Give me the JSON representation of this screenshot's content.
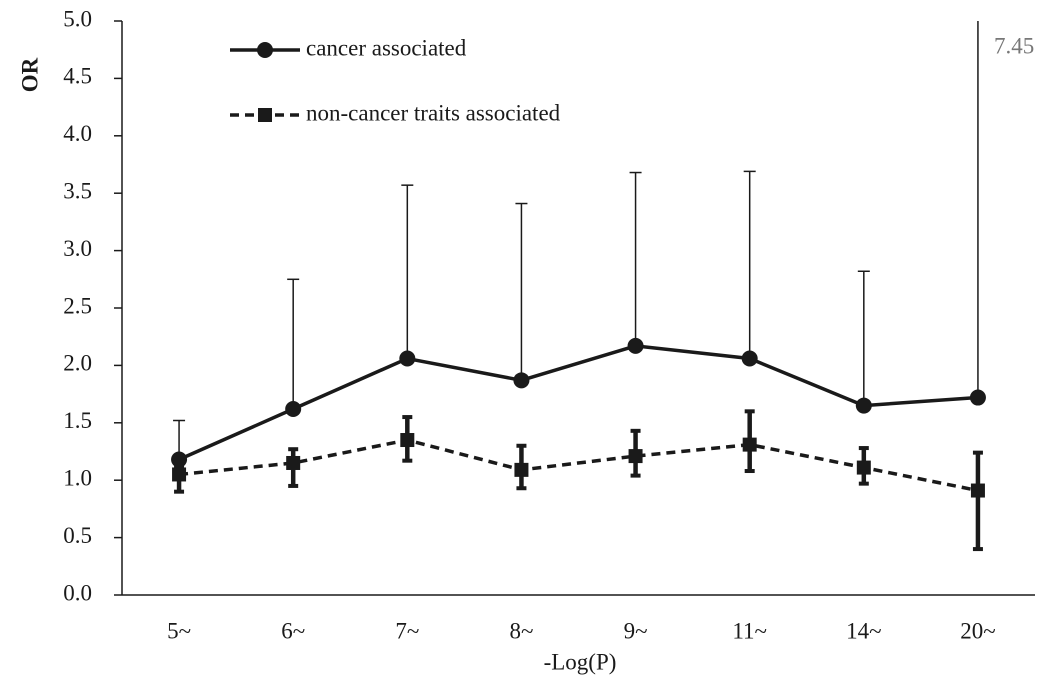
{
  "chart_data": {
    "type": "line",
    "y_label": "OR",
    "x_label": "-Log(P)",
    "categories": [
      "5~",
      "6~",
      "7~",
      "8~",
      "9~",
      "11~",
      "14~",
      "20~"
    ],
    "ylim": [
      0,
      5
    ],
    "yticks": [
      {
        "value": 0,
        "label": "0.0"
      },
      0.5,
      {
        "value": 1,
        "label": "1.0"
      },
      1.5,
      {
        "value": 2,
        "label": "2.0"
      },
      2.5,
      {
        "value": 3,
        "label": "3.0"
      },
      3.5,
      {
        "value": 4,
        "label": "4.0"
      },
      4.5,
      {
        "value": 5,
        "label": "5.0"
      }
    ],
    "series": [
      {
        "name": "cancer associated",
        "color": "#1a1a1a",
        "dash": false,
        "marker": "circle",
        "values": [
          1.18,
          1.62,
          2.06,
          1.87,
          2.17,
          2.06,
          1.65,
          1.72
        ],
        "upper": [
          1.52,
          2.75,
          3.57,
          3.41,
          3.68,
          3.69,
          2.82,
          7.45
        ]
      },
      {
        "name": "non-cancer traits associated",
        "color": "#1a1a1a",
        "dash": true,
        "marker": "square",
        "values": [
          1.05,
          1.15,
          1.35,
          1.09,
          1.21,
          1.31,
          1.11,
          0.91
        ],
        "lower": [
          0.9,
          0.95,
          1.17,
          0.93,
          1.04,
          1.08,
          0.97,
          0.4
        ],
        "upper": [
          1.11,
          1.27,
          1.55,
          1.3,
          1.43,
          1.6,
          1.28,
          1.24
        ]
      }
    ]
  }
}
